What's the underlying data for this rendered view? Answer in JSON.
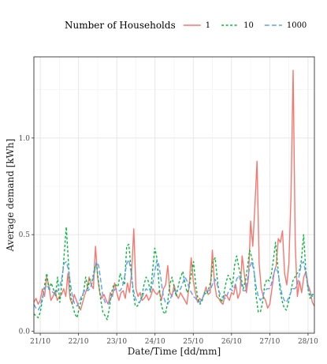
{
  "chart_data": {
    "type": "line",
    "title": "",
    "xlabel": "Date/Time [dd/mm]",
    "ylabel": "Average demand [kWh]",
    "legend_title": "Number of Households",
    "legend_position": "top",
    "grid": true,
    "x_range": [
      "2013-10-20T20:00",
      "2013-10-28T04:00"
    ],
    "ylim": [
      -0.01,
      1.42
    ],
    "x_ticks": [
      "21/10",
      "22/10",
      "23/10",
      "24/10",
      "25/10",
      "26/10",
      "27/10",
      "28/10"
    ],
    "y_ticks": [
      {
        "value": 0.0,
        "label": "0.0"
      },
      {
        "value": 0.5,
        "label": "0.5"
      },
      {
        "value": 1.0,
        "label": "1.0"
      }
    ],
    "series": [
      {
        "name": "1",
        "color": "#F8766D",
        "dash": "solid",
        "values": [
          0.15,
          0.17,
          0.14,
          0.16,
          0.22,
          0.18,
          0.28,
          0.24,
          0.16,
          0.18,
          0.21,
          0.16,
          0.18,
          0.19,
          0.22,
          0.18,
          0.3,
          0.17,
          0.14,
          0.19,
          0.16,
          0.13,
          0.11,
          0.15,
          0.19,
          0.22,
          0.28,
          0.24,
          0.22,
          0.44,
          0.28,
          0.2,
          0.17,
          0.19,
          0.16,
          0.14,
          0.2,
          0.18,
          0.25,
          0.2,
          0.16,
          0.2,
          0.21,
          0.17,
          0.25,
          0.2,
          0.31,
          0.53,
          0.22,
          0.18,
          0.2,
          0.16,
          0.17,
          0.19,
          0.16,
          0.18,
          0.22,
          0.2,
          0.19,
          0.21,
          0.16,
          0.22,
          0.24,
          0.34,
          0.2,
          0.18,
          0.24,
          0.19,
          0.17,
          0.2,
          0.18,
          0.16,
          0.14,
          0.23,
          0.38,
          0.26,
          0.2,
          0.15,
          0.17,
          0.16,
          0.19,
          0.23,
          0.19,
          0.2,
          0.42,
          0.25,
          0.18,
          0.17,
          0.15,
          0.14,
          0.19,
          0.18,
          0.16,
          0.2,
          0.19,
          0.24,
          0.17,
          0.2,
          0.39,
          0.3,
          0.2,
          0.28,
          0.57,
          0.44,
          0.65,
          0.88,
          0.35,
          0.22,
          0.18,
          0.16,
          0.12,
          0.14,
          0.22,
          0.3,
          0.34,
          0.48,
          0.46,
          0.52,
          0.3,
          0.24,
          0.35,
          0.7,
          1.35,
          0.45,
          0.18,
          0.26,
          0.2,
          0.28,
          0.31,
          0.24,
          0.21,
          0.15,
          0.13
        ]
      },
      {
        "name": "10",
        "color": "#00BA38",
        "dash": "3,2.5",
        "values": [
          0.09,
          0.08,
          0.07,
          0.1,
          0.17,
          0.24,
          0.3,
          0.21,
          0.25,
          0.22,
          0.18,
          0.28,
          0.15,
          0.25,
          0.39,
          0.54,
          0.36,
          0.18,
          0.13,
          0.09,
          0.07,
          0.12,
          0.16,
          0.2,
          0.28,
          0.22,
          0.27,
          0.26,
          0.32,
          0.35,
          0.25,
          0.16,
          0.1,
          0.08,
          0.06,
          0.12,
          0.2,
          0.24,
          0.24,
          0.23,
          0.3,
          0.26,
          0.24,
          0.44,
          0.45,
          0.33,
          0.2,
          0.13,
          0.13,
          0.15,
          0.18,
          0.24,
          0.28,
          0.26,
          0.2,
          0.31,
          0.43,
          0.38,
          0.24,
          0.14,
          0.1,
          0.09,
          0.15,
          0.24,
          0.28,
          0.23,
          0.18,
          0.24,
          0.28,
          0.31,
          0.25,
          0.2,
          0.23,
          0.3,
          0.36,
          0.24,
          0.17,
          0.14,
          0.16,
          0.2,
          0.19,
          0.22,
          0.26,
          0.36,
          0.38,
          0.27,
          0.18,
          0.15,
          0.19,
          0.25,
          0.29,
          0.27,
          0.23,
          0.34,
          0.39,
          0.33,
          0.28,
          0.22,
          0.26,
          0.33,
          0.42,
          0.38,
          0.32,
          0.18,
          0.1,
          0.1,
          0.15,
          0.24,
          0.27,
          0.26,
          0.29,
          0.37,
          0.46,
          0.34,
          0.22,
          0.16,
          0.12,
          0.11,
          0.15,
          0.2,
          0.26,
          0.28,
          0.3,
          0.31,
          0.37,
          0.5,
          0.32,
          0.22,
          0.17,
          0.19,
          0.19
        ]
      },
      {
        "name": "1000",
        "color": "#619CFF",
        "dash": "6,3",
        "values": [
          0.14,
          0.12,
          0.11,
          0.13,
          0.18,
          0.22,
          0.24,
          0.22,
          0.21,
          0.2,
          0.19,
          0.21,
          0.23,
          0.28,
          0.35,
          0.36,
          0.32,
          0.24,
          0.17,
          0.14,
          0.13,
          0.15,
          0.18,
          0.2,
          0.22,
          0.21,
          0.22,
          0.25,
          0.3,
          0.36,
          0.34,
          0.26,
          0.18,
          0.15,
          0.14,
          0.15,
          0.18,
          0.21,
          0.22,
          0.21,
          0.21,
          0.23,
          0.28,
          0.35,
          0.37,
          0.31,
          0.22,
          0.17,
          0.15,
          0.15,
          0.17,
          0.2,
          0.22,
          0.21,
          0.21,
          0.24,
          0.31,
          0.37,
          0.34,
          0.26,
          0.18,
          0.15,
          0.14,
          0.16,
          0.19,
          0.21,
          0.21,
          0.21,
          0.22,
          0.25,
          0.28,
          0.26,
          0.22,
          0.2,
          0.18,
          0.17,
          0.15,
          0.15,
          0.17,
          0.19,
          0.21,
          0.21,
          0.22,
          0.25,
          0.27,
          0.24,
          0.2,
          0.18,
          0.17,
          0.17,
          0.2,
          0.22,
          0.21,
          0.23,
          0.27,
          0.29,
          0.25,
          0.21,
          0.21,
          0.27,
          0.33,
          0.36,
          0.31,
          0.23,
          0.18,
          0.16,
          0.18,
          0.21,
          0.22,
          0.22,
          0.24,
          0.29,
          0.33,
          0.31,
          0.25,
          0.19,
          0.16,
          0.15,
          0.17,
          0.2,
          0.22,
          0.22,
          0.24,
          0.29,
          0.35,
          0.36,
          0.3,
          0.23,
          0.19,
          0.18,
          0.19
        ]
      }
    ]
  }
}
